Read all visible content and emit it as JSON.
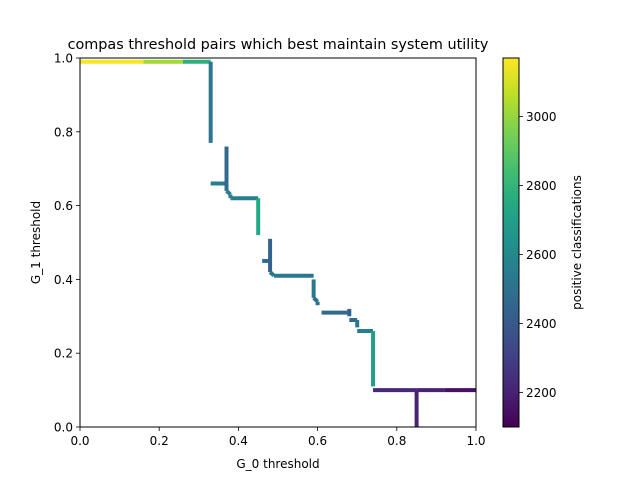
{
  "chart_data": {
    "type": "line",
    "title": "compas threshold pairs which best maintain system utility",
    "xlabel": "G_0 threshold",
    "ylabel": "G_1 threshold",
    "xlim": [
      0,
      1
    ],
    "ylim": [
      0,
      1
    ],
    "xticks": [
      "0.0",
      "0.2",
      "0.4",
      "0.6",
      "0.8",
      "1.0"
    ],
    "yticks": [
      "0.0",
      "0.2",
      "0.4",
      "0.6",
      "0.8",
      "1.0"
    ],
    "grid": false,
    "colorbar": {
      "label": "positive classifications",
      "colormap": "viridis",
      "range": [
        2100,
        3170
      ],
      "ticks": [
        "2200",
        "2400",
        "2600",
        "2800",
        "3000"
      ]
    },
    "segments": [
      {
        "x": [
          0.0,
          0.16
        ],
        "y": [
          0.99,
          0.99
        ],
        "c": 3160
      },
      {
        "x": [
          0.16,
          0.26
        ],
        "y": [
          0.99,
          0.99
        ],
        "c": 3020
      },
      {
        "x": [
          0.26,
          0.33
        ],
        "y": [
          0.99,
          0.99
        ],
        "c": 2780
      },
      {
        "x": [
          0.33,
          0.33
        ],
        "y": [
          0.99,
          0.77
        ],
        "c": 2520
      },
      {
        "x": [
          0.33,
          0.37
        ],
        "y": [
          0.66,
          0.66
        ],
        "c": 2560
      },
      {
        "x": [
          0.37,
          0.37
        ],
        "y": [
          0.76,
          0.64
        ],
        "c": 2470
      },
      {
        "x": [
          0.37,
          0.38
        ],
        "y": [
          0.64,
          0.63
        ],
        "c": 2560
      },
      {
        "x": [
          0.38,
          0.38
        ],
        "y": [
          0.63,
          0.62
        ],
        "c": 2560
      },
      {
        "x": [
          0.38,
          0.45
        ],
        "y": [
          0.62,
          0.62
        ],
        "c": 2560
      },
      {
        "x": [
          0.45,
          0.45
        ],
        "y": [
          0.62,
          0.52
        ],
        "c": 2740
      },
      {
        "x": [
          0.46,
          0.48
        ],
        "y": [
          0.45,
          0.45
        ],
        "c": 2480
      },
      {
        "x": [
          0.48,
          0.48
        ],
        "y": [
          0.51,
          0.42
        ],
        "c": 2440
      },
      {
        "x": [
          0.48,
          0.49
        ],
        "y": [
          0.42,
          0.41
        ],
        "c": 2530
      },
      {
        "x": [
          0.49,
          0.59
        ],
        "y": [
          0.41,
          0.41
        ],
        "c": 2530
      },
      {
        "x": [
          0.59,
          0.59
        ],
        "y": [
          0.4,
          0.35
        ],
        "c": 2520
      },
      {
        "x": [
          0.59,
          0.6
        ],
        "y": [
          0.35,
          0.34
        ],
        "c": 2500
      },
      {
        "x": [
          0.6,
          0.6
        ],
        "y": [
          0.34,
          0.33
        ],
        "c": 2500
      },
      {
        "x": [
          0.61,
          0.68
        ],
        "y": [
          0.31,
          0.31
        ],
        "c": 2470
      },
      {
        "x": [
          0.68,
          0.68
        ],
        "y": [
          0.32,
          0.3
        ],
        "c": 2420
      },
      {
        "x": [
          0.68,
          0.7
        ],
        "y": [
          0.29,
          0.29
        ],
        "c": 2480
      },
      {
        "x": [
          0.7,
          0.7
        ],
        "y": [
          0.29,
          0.27
        ],
        "c": 2520
      },
      {
        "x": [
          0.7,
          0.74
        ],
        "y": [
          0.26,
          0.26
        ],
        "c": 2560
      },
      {
        "x": [
          0.74,
          0.74
        ],
        "y": [
          0.26,
          0.11
        ],
        "c": 2700
      },
      {
        "x": [
          0.74,
          0.85
        ],
        "y": [
          0.1,
          0.1
        ],
        "c": 2220
      },
      {
        "x": [
          0.85,
          0.85
        ],
        "y": [
          0.1,
          0.0
        ],
        "c": 2200
      },
      {
        "x": [
          0.85,
          0.92
        ],
        "y": [
          0.1,
          0.1
        ],
        "c": 2200
      },
      {
        "x": [
          0.92,
          1.0
        ],
        "y": [
          0.1,
          0.1
        ],
        "c": 2150
      }
    ]
  }
}
